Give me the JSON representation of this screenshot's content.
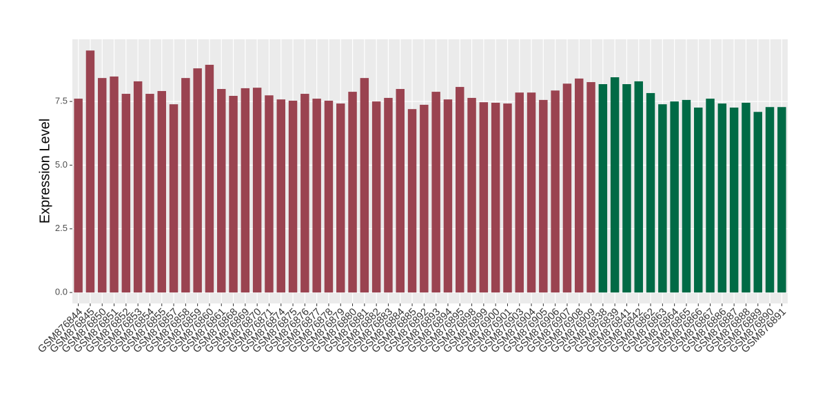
{
  "chart_data": {
    "type": "bar",
    "y_label": "Expression Level",
    "categories": [
      "GSM876844",
      "GSM876845",
      "GSM876850",
      "GSM876851",
      "GSM876852",
      "GSM876853",
      "GSM876854",
      "GSM876855",
      "GSM876857",
      "GSM876858",
      "GSM876859",
      "GSM876860",
      "GSM876861",
      "GSM876868",
      "GSM876869",
      "GSM876870",
      "GSM876871",
      "GSM876874",
      "GSM876875",
      "GSM876876",
      "GSM876877",
      "GSM876878",
      "GSM876879",
      "GSM876880",
      "GSM876881",
      "GSM876882",
      "GSM876883",
      "GSM876884",
      "GSM876885",
      "GSM876892",
      "GSM876893",
      "GSM876894",
      "GSM876895",
      "GSM876898",
      "GSM876899",
      "GSM876900",
      "GSM876901",
      "GSM876903",
      "GSM876904",
      "GSM876905",
      "GSM876906",
      "GSM876907",
      "GSM876908",
      "GSM876909",
      "GSM876838",
      "GSM876839",
      "GSM876841",
      "GSM876842",
      "GSM876862",
      "GSM876863",
      "GSM876864",
      "GSM876865",
      "GSM876866",
      "GSM876867",
      "GSM876886",
      "GSM876887",
      "GSM876888",
      "GSM876889",
      "GSM876890",
      "GSM876891"
    ],
    "values": [
      7.61,
      9.5,
      8.42,
      8.48,
      7.8,
      8.29,
      7.8,
      7.91,
      7.39,
      8.42,
      8.8,
      8.94,
      7.99,
      7.72,
      8.02,
      8.04,
      7.74,
      7.58,
      7.53,
      7.8,
      7.61,
      7.53,
      7.42,
      7.88,
      8.42,
      7.5,
      7.64,
      7.99,
      7.2,
      7.37,
      7.88,
      7.58,
      8.07,
      7.64,
      7.47,
      7.45,
      7.42,
      7.85,
      7.85,
      7.56,
      7.93,
      8.2,
      8.4,
      8.26,
      8.18,
      8.45,
      8.18,
      8.29,
      7.83,
      7.39,
      7.5,
      7.56,
      7.26,
      7.61,
      7.42,
      7.26,
      7.45,
      7.09,
      7.28,
      7.28
    ],
    "colors": [
      "#9a4350",
      "#9a4350",
      "#9a4350",
      "#9a4350",
      "#9a4350",
      "#9a4350",
      "#9a4350",
      "#9a4350",
      "#9a4350",
      "#9a4350",
      "#9a4350",
      "#9a4350",
      "#9a4350",
      "#9a4350",
      "#9a4350",
      "#9a4350",
      "#9a4350",
      "#9a4350",
      "#9a4350",
      "#9a4350",
      "#9a4350",
      "#9a4350",
      "#9a4350",
      "#9a4350",
      "#9a4350",
      "#9a4350",
      "#9a4350",
      "#9a4350",
      "#9a4350",
      "#9a4350",
      "#9a4350",
      "#9a4350",
      "#9a4350",
      "#9a4350",
      "#9a4350",
      "#9a4350",
      "#9a4350",
      "#9a4350",
      "#9a4350",
      "#9a4350",
      "#9a4350",
      "#9a4350",
      "#9a4350",
      "#9a4350",
      "#006a45",
      "#006a45",
      "#006a45",
      "#006a45",
      "#006a45",
      "#006a45",
      "#006a45",
      "#006a45",
      "#006a45",
      "#006a45",
      "#006a45",
      "#006a45",
      "#006a45",
      "#006a45",
      "#006a45",
      "#006a45"
    ],
    "ylim": [
      -0.43,
      9.94
    ],
    "yticks": [
      {
        "value": 0,
        "label": "0.0"
      },
      2.5,
      {
        "value": 5,
        "label": "5.0"
      },
      7.5
    ],
    "grid": true
  }
}
